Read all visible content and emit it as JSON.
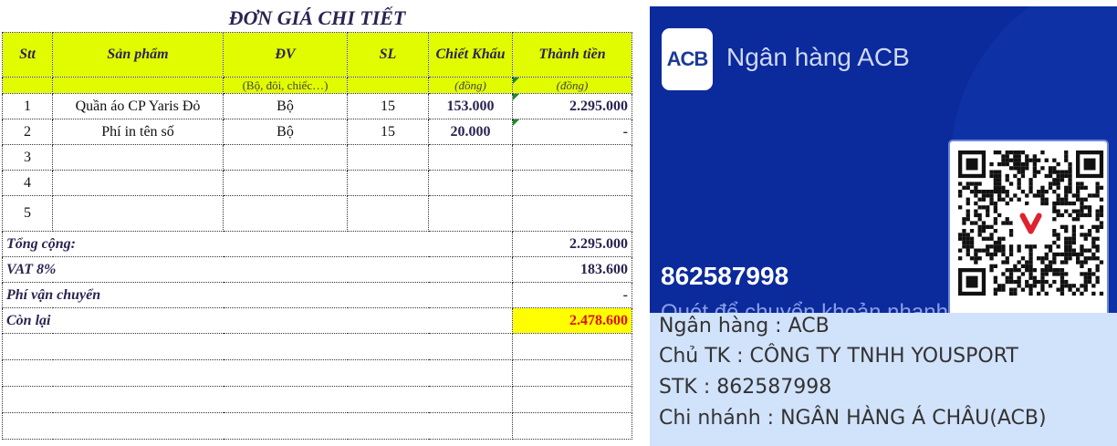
{
  "sheet": {
    "title": "ĐƠN GIÁ CHI TIẾT",
    "headers": [
      "Stt",
      "Sản phẩm",
      "ĐV",
      "SL",
      "Chiết Khấu",
      "Thành tiền"
    ],
    "subheaders": [
      "",
      "",
      "(Bộ, đôi, chiếc…)",
      "",
      "(đồng)",
      "(đồng)"
    ],
    "rows": [
      {
        "stt": "1",
        "product": "Quần áo CP Yaris Đỏ",
        "unit": "Bộ",
        "qty": "15",
        "discount": "153.000",
        "amount": "2.295.000"
      },
      {
        "stt": "2",
        "product": "Phí in tên số",
        "unit": "Bộ",
        "qty": "15",
        "discount": "20.000",
        "amount": "-"
      },
      {
        "stt": "3",
        "product": "",
        "unit": "",
        "qty": "",
        "discount": "",
        "amount": ""
      },
      {
        "stt": "4",
        "product": "",
        "unit": "",
        "qty": "",
        "discount": "",
        "amount": ""
      },
      {
        "stt": "5",
        "product": "",
        "unit": "",
        "qty": "",
        "discount": "",
        "amount": ""
      }
    ],
    "summary": [
      {
        "label": "Tổng cộng:",
        "value": "2.295.000"
      },
      {
        "label": "VAT 8%",
        "value": "183.600"
      },
      {
        "label": "Phí vận chuyển",
        "value": "-"
      },
      {
        "label": "Còn lại",
        "value": "2.478.600"
      }
    ],
    "colors": {
      "header_bg": "#e1fb00",
      "highlight_bg": "#ffff00",
      "highlight_text": "#e01010"
    }
  },
  "bank_card": {
    "logo": "ACB",
    "bank_name": "Ngân hàng ACB",
    "account_number": "862587998",
    "caption": "Quét để chuyển khoản nhanh",
    "qr_icon": "qr-code",
    "colors": {
      "card_bg": "#0b2a9b"
    }
  },
  "bank_info": {
    "lines": [
      "Ngân hàng : ACB",
      "Chủ TK : CÔNG TY TNHH YOUSPORT",
      "STK : 862587998",
      "Chi nhánh : NGÂN HÀNG Á CHÂU(ACB)"
    ]
  }
}
